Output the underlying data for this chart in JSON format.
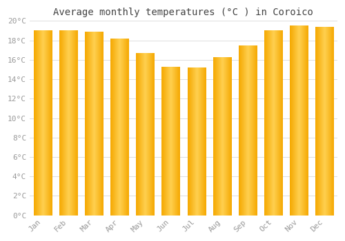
{
  "title": "Average monthly temperatures (°C ) in Coroico",
  "months": [
    "Jan",
    "Feb",
    "Mar",
    "Apr",
    "May",
    "Jun",
    "Jul",
    "Aug",
    "Sep",
    "Oct",
    "Nov",
    "Dec"
  ],
  "values": [
    19.0,
    19.0,
    18.9,
    18.2,
    16.7,
    15.3,
    15.2,
    16.3,
    17.5,
    19.0,
    19.5,
    19.4
  ],
  "bar_color_edge": "#F5A800",
  "bar_color_center": "#FFD050",
  "ylim": [
    0,
    20
  ],
  "yticks": [
    0,
    2,
    4,
    6,
    8,
    10,
    12,
    14,
    16,
    18,
    20
  ],
  "ytick_labels": [
    "0°C",
    "2°C",
    "4°C",
    "6°C",
    "8°C",
    "10°C",
    "12°C",
    "14°C",
    "16°C",
    "18°C",
    "20°C"
  ],
  "background_color": "#FFFFFF",
  "grid_color": "#DDDDDD",
  "title_fontsize": 10,
  "tick_fontsize": 8,
  "tick_color": "#999999",
  "font_family": "monospace",
  "bar_width": 0.7
}
